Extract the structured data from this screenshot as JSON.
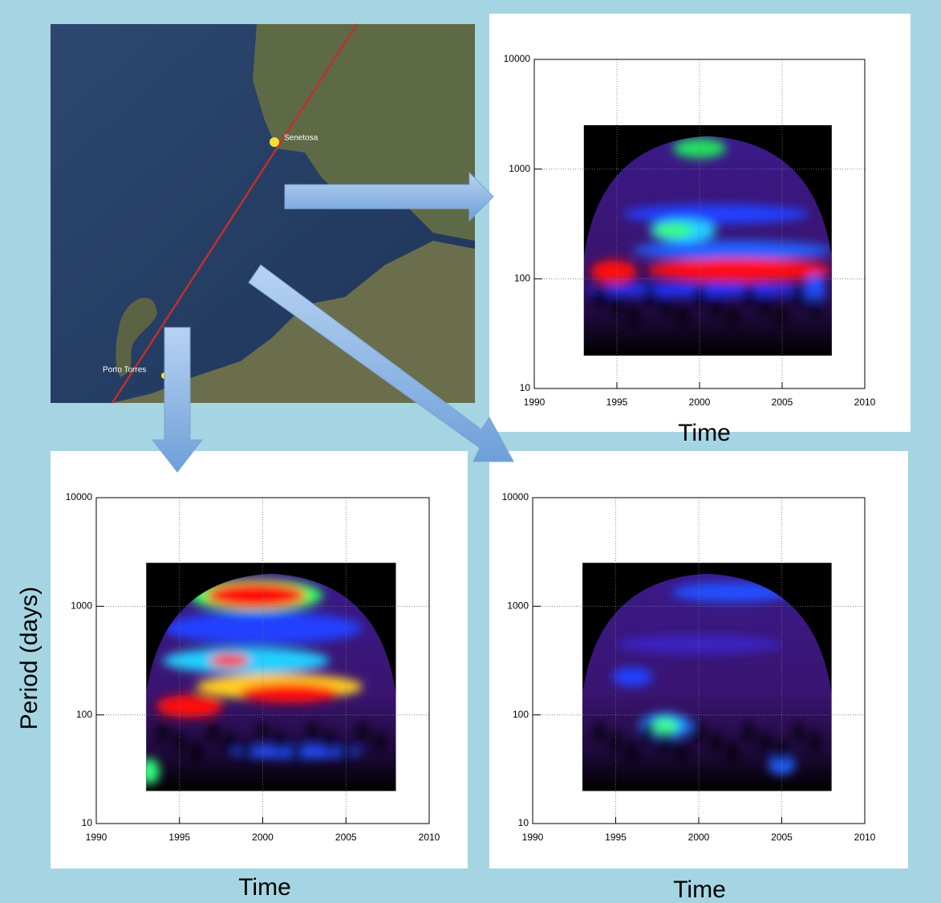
{
  "map": {
    "labels": [
      "Senetosa",
      "Porto Torres"
    ]
  },
  "chart_data": [
    {
      "type": "heatmap",
      "xlim": [
        1990,
        2010
      ],
      "xticks": [
        1990,
        1995,
        2000,
        2005,
        2010
      ],
      "ylim": [
        10,
        10000
      ],
      "yticks": [
        10,
        100,
        1000,
        10000
      ],
      "log_y": true,
      "grid": true,
      "x_label": "Time"
    },
    {
      "type": "heatmap",
      "xlim": [
        1990,
        2010
      ],
      "xticks": [
        1990,
        1995,
        2000,
        2005,
        2010
      ],
      "ylim": [
        10,
        10000
      ],
      "yticks": [
        10,
        100,
        1000,
        10000
      ],
      "log_y": true,
      "grid": true,
      "x_label": "Time",
      "y_label": "Period (days)"
    },
    {
      "type": "heatmap",
      "xlim": [
        1990,
        2010
      ],
      "xticks": [
        1990,
        1995,
        2000,
        2005,
        2010
      ],
      "ylim": [
        10,
        10000
      ],
      "yticks": [
        10,
        100,
        1000,
        10000
      ],
      "log_y": true,
      "grid": true,
      "x_label": "Time"
    }
  ]
}
